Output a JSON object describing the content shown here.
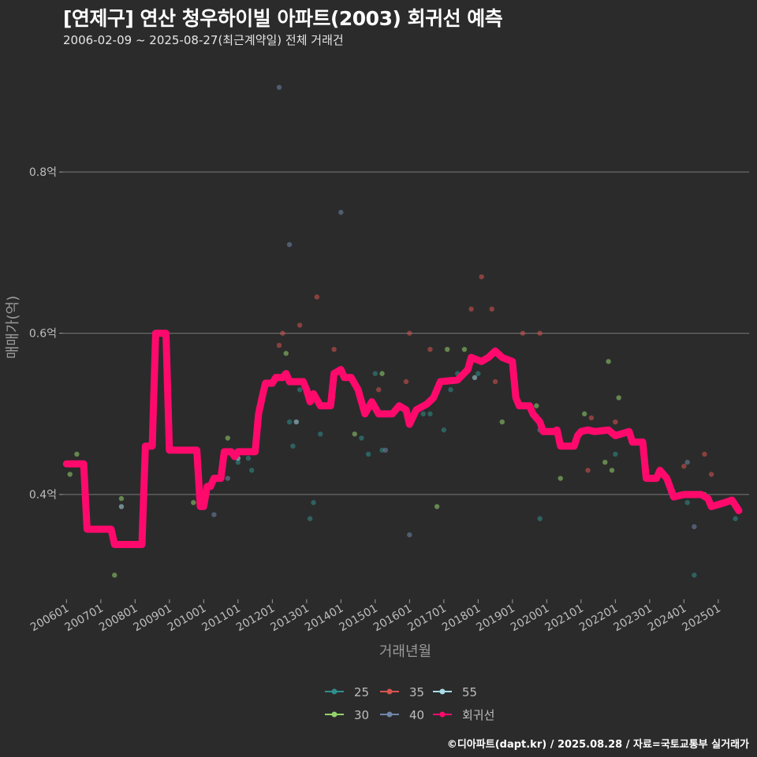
{
  "header": {
    "title": "[연제구] 연산 청우하이빌 아파트(2003) 회귀선 예측",
    "subtitle": "2006-02-09 ~ 2025-08-27(최근계약일) 전체 거래건"
  },
  "footer": {
    "credit": "©디아파트(dapt.kr) / 2025.08.28 / 자료=국토교통부 실거래가"
  },
  "chart_data": {
    "type": "scatter",
    "title": "[연제구] 연산 청우하이빌 아파트(2003) 회귀선 예측",
    "xlabel": "거래년월",
    "ylabel": "매매가(억)",
    "xlim": [
      2005.9,
      2025.9
    ],
    "ylim": [
      0.27,
      0.94
    ],
    "x_ticks": [
      {
        "label": "200601",
        "value": 2006.0
      },
      {
        "label": "200701",
        "value": 2007.0
      },
      {
        "label": "200801",
        "value": 2008.0
      },
      {
        "label": "200901",
        "value": 2009.0
      },
      {
        "label": "201001",
        "value": 2010.0
      },
      {
        "label": "201101",
        "value": 2011.0
      },
      {
        "label": "201201",
        "value": 2012.0
      },
      {
        "label": "201301",
        "value": 2013.0
      },
      {
        "label": "201401",
        "value": 2014.0
      },
      {
        "label": "201501",
        "value": 2015.0
      },
      {
        "label": "201601",
        "value": 2016.0
      },
      {
        "label": "201701",
        "value": 2017.0
      },
      {
        "label": "201801",
        "value": 2018.0
      },
      {
        "label": "201901",
        "value": 2019.0
      },
      {
        "label": "202001",
        "value": 2020.0
      },
      {
        "label": "202101",
        "value": 2021.0
      },
      {
        "label": "202201",
        "value": 2022.0
      },
      {
        "label": "202301",
        "value": 2023.0
      },
      {
        "label": "202401",
        "value": 2024.0
      },
      {
        "label": "202501",
        "value": 2025.0
      }
    ],
    "y_ticks": [
      {
        "label": "0.4억",
        "value": 0.4
      },
      {
        "label": "0.6억",
        "value": 0.6
      },
      {
        "label": "0.8억",
        "value": 0.8
      }
    ],
    "legend": [
      {
        "label": "25",
        "color": "#2f8f8c"
      },
      {
        "label": "35",
        "color": "#d9534f"
      },
      {
        "label": "55",
        "color": "#a9dbe8"
      },
      {
        "label": "30",
        "color": "#93d36b"
      },
      {
        "label": "40",
        "color": "#6f86a8"
      },
      {
        "label": "회귀선",
        "color": "#ff0a6c"
      }
    ],
    "series": [
      {
        "name": "25",
        "color": "#2f8f8c",
        "points": [
          [
            2008.8,
            0.6
          ],
          [
            2011.0,
            0.44
          ],
          [
            2011.3,
            0.445
          ],
          [
            2011.4,
            0.43
          ],
          [
            2012.5,
            0.49
          ],
          [
            2012.6,
            0.46
          ],
          [
            2012.8,
            0.53
          ],
          [
            2013.1,
            0.37
          ],
          [
            2013.2,
            0.39
          ],
          [
            2013.4,
            0.475
          ],
          [
            2014.6,
            0.47
          ],
          [
            2014.8,
            0.45
          ],
          [
            2015.0,
            0.55
          ],
          [
            2015.2,
            0.455
          ],
          [
            2016.4,
            0.5
          ],
          [
            2016.6,
            0.5
          ],
          [
            2017.0,
            0.48
          ],
          [
            2017.2,
            0.53
          ],
          [
            2017.4,
            0.55
          ],
          [
            2018.0,
            0.55
          ],
          [
            2019.8,
            0.37
          ],
          [
            2022.0,
            0.45
          ],
          [
            2024.1,
            0.39
          ],
          [
            2024.3,
            0.3
          ],
          [
            2025.5,
            0.37
          ]
        ]
      },
      {
        "name": "30",
        "color": "#93d36b",
        "points": [
          [
            2006.1,
            0.425
          ],
          [
            2006.3,
            0.45
          ],
          [
            2007.4,
            0.3
          ],
          [
            2007.6,
            0.395
          ],
          [
            2009.7,
            0.39
          ],
          [
            2010.7,
            0.47
          ],
          [
            2011.6,
            0.5
          ],
          [
            2012.4,
            0.575
          ],
          [
            2014.4,
            0.475
          ],
          [
            2015.2,
            0.55
          ],
          [
            2016.8,
            0.385
          ],
          [
            2017.1,
            0.58
          ],
          [
            2017.6,
            0.58
          ],
          [
            2018.7,
            0.49
          ],
          [
            2019.7,
            0.51
          ],
          [
            2020.4,
            0.42
          ],
          [
            2021.1,
            0.5
          ],
          [
            2021.7,
            0.44
          ],
          [
            2021.8,
            0.565
          ],
          [
            2022.1,
            0.52
          ],
          [
            2021.9,
            0.43
          ],
          [
            2023.0,
            0.42
          ],
          [
            2024.6,
            0.4
          ]
        ]
      },
      {
        "name": "35",
        "color": "#d9534f",
        "points": [
          [
            2012.2,
            0.585
          ],
          [
            2012.3,
            0.6
          ],
          [
            2012.8,
            0.61
          ],
          [
            2013.3,
            0.645
          ],
          [
            2013.8,
            0.58
          ],
          [
            2015.1,
            0.53
          ],
          [
            2015.9,
            0.54
          ],
          [
            2016.0,
            0.6
          ],
          [
            2016.6,
            0.58
          ],
          [
            2017.8,
            0.63
          ],
          [
            2018.1,
            0.67
          ],
          [
            2018.4,
            0.63
          ],
          [
            2018.5,
            0.54
          ],
          [
            2019.3,
            0.6
          ],
          [
            2019.8,
            0.6
          ],
          [
            2021.2,
            0.43
          ],
          [
            2021.3,
            0.495
          ],
          [
            2022.0,
            0.49
          ],
          [
            2024.0,
            0.435
          ],
          [
            2024.6,
            0.45
          ],
          [
            2024.8,
            0.425
          ]
        ]
      },
      {
        "name": "40",
        "color": "#6f86a8",
        "points": [
          [
            2010.3,
            0.375
          ],
          [
            2010.7,
            0.42
          ],
          [
            2012.2,
            0.905
          ],
          [
            2012.5,
            0.71
          ],
          [
            2014.0,
            0.75
          ],
          [
            2015.3,
            0.455
          ],
          [
            2016.0,
            0.35
          ],
          [
            2019.8,
            0.48
          ],
          [
            2021.3,
            0.48
          ],
          [
            2024.3,
            0.36
          ],
          [
            2024.1,
            0.44
          ]
        ]
      },
      {
        "name": "55",
        "color": "#a9dbe8",
        "points": [
          [
            2007.6,
            0.385
          ],
          [
            2011.0,
            0.445
          ],
          [
            2012.7,
            0.49
          ],
          [
            2013.7,
            0.52
          ],
          [
            2017.9,
            0.545
          ]
        ]
      },
      {
        "name": "회귀선",
        "color": "#ff0a6c",
        "line": [
          [
            2006.0,
            0.438
          ],
          [
            2006.5,
            0.438
          ],
          [
            2006.6,
            0.357
          ],
          [
            2007.3,
            0.357
          ],
          [
            2007.4,
            0.338
          ],
          [
            2008.2,
            0.338
          ],
          [
            2008.3,
            0.46
          ],
          [
            2008.5,
            0.46
          ],
          [
            2008.6,
            0.6
          ],
          [
            2008.9,
            0.6
          ],
          [
            2009.0,
            0.455
          ],
          [
            2009.8,
            0.455
          ],
          [
            2009.9,
            0.385
          ],
          [
            2010.0,
            0.385
          ],
          [
            2010.1,
            0.41
          ],
          [
            2010.2,
            0.41
          ],
          [
            2010.3,
            0.42
          ],
          [
            2010.5,
            0.42
          ],
          [
            2010.6,
            0.453
          ],
          [
            2010.8,
            0.453
          ],
          [
            2010.9,
            0.447
          ],
          [
            2011.0,
            0.453
          ],
          [
            2011.5,
            0.453
          ],
          [
            2011.6,
            0.5
          ],
          [
            2011.7,
            0.52
          ],
          [
            2011.8,
            0.538
          ],
          [
            2012.0,
            0.538
          ],
          [
            2012.1,
            0.545
          ],
          [
            2012.3,
            0.545
          ],
          [
            2012.4,
            0.55
          ],
          [
            2012.5,
            0.54
          ],
          [
            2012.9,
            0.54
          ],
          [
            2013.0,
            0.53
          ],
          [
            2013.1,
            0.515
          ],
          [
            2013.2,
            0.525
          ],
          [
            2013.4,
            0.51
          ],
          [
            2013.7,
            0.51
          ],
          [
            2013.8,
            0.55
          ],
          [
            2014.0,
            0.555
          ],
          [
            2014.1,
            0.545
          ],
          [
            2014.3,
            0.545
          ],
          [
            2014.5,
            0.53
          ],
          [
            2014.7,
            0.5
          ],
          [
            2014.9,
            0.515
          ],
          [
            2015.1,
            0.5
          ],
          [
            2015.5,
            0.5
          ],
          [
            2015.7,
            0.51
          ],
          [
            2015.9,
            0.505
          ],
          [
            2016.0,
            0.487
          ],
          [
            2016.2,
            0.505
          ],
          [
            2016.5,
            0.512
          ],
          [
            2016.7,
            0.52
          ],
          [
            2016.9,
            0.54
          ],
          [
            2017.4,
            0.542
          ],
          [
            2017.7,
            0.555
          ],
          [
            2017.8,
            0.57
          ],
          [
            2018.1,
            0.565
          ],
          [
            2018.3,
            0.57
          ],
          [
            2018.5,
            0.578
          ],
          [
            2018.7,
            0.57
          ],
          [
            2019.0,
            0.565
          ],
          [
            2019.1,
            0.52
          ],
          [
            2019.2,
            0.51
          ],
          [
            2019.5,
            0.51
          ],
          [
            2019.6,
            0.5
          ],
          [
            2019.8,
            0.49
          ],
          [
            2019.9,
            0.478
          ],
          [
            2020.2,
            0.478
          ],
          [
            2020.3,
            0.48
          ],
          [
            2020.4,
            0.46
          ],
          [
            2020.8,
            0.46
          ],
          [
            2020.9,
            0.473
          ],
          [
            2021.0,
            0.478
          ],
          [
            2021.2,
            0.48
          ],
          [
            2021.4,
            0.478
          ],
          [
            2021.8,
            0.48
          ],
          [
            2022.0,
            0.473
          ],
          [
            2022.4,
            0.478
          ],
          [
            2022.5,
            0.465
          ],
          [
            2022.8,
            0.465
          ],
          [
            2022.9,
            0.42
          ],
          [
            2023.2,
            0.42
          ],
          [
            2023.3,
            0.43
          ],
          [
            2023.5,
            0.42
          ],
          [
            2023.7,
            0.397
          ],
          [
            2024.0,
            0.4
          ],
          [
            2024.5,
            0.4
          ],
          [
            2024.7,
            0.395
          ],
          [
            2024.8,
            0.385
          ],
          [
            2025.2,
            0.39
          ],
          [
            2025.4,
            0.393
          ],
          [
            2025.6,
            0.38
          ]
        ]
      }
    ]
  }
}
